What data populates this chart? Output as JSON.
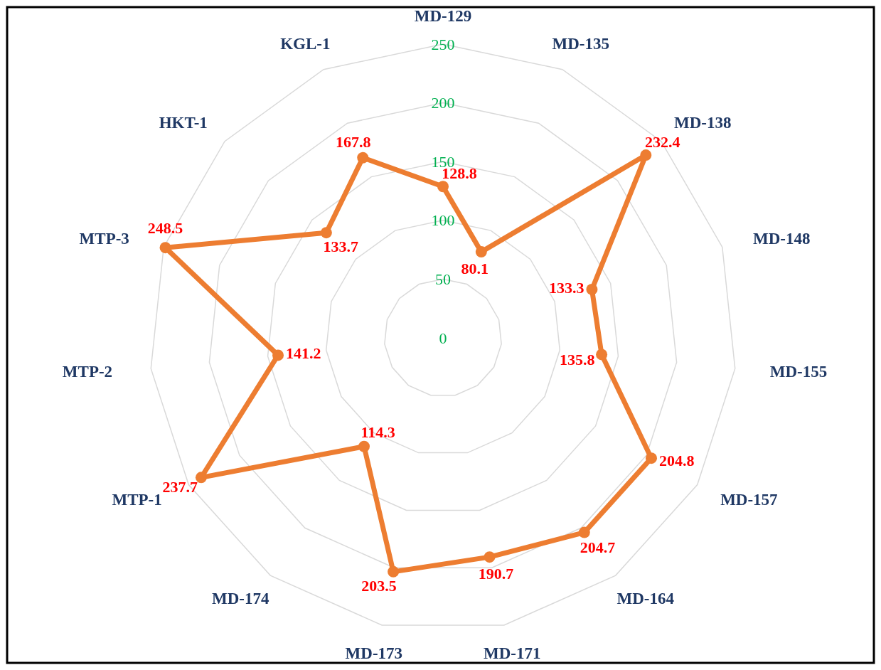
{
  "chart_data": {
    "type": "radar",
    "categories": [
      "MD-129",
      "MD-135",
      "MD-138",
      "MD-148",
      "MD-155",
      "MD-157",
      "MD-164",
      "MD-171",
      "MD-173",
      "MD-174",
      "MTP-1",
      "MTP-2",
      "MTP-3",
      "HKT-1",
      "KGL-1"
    ],
    "series": [
      {
        "color": "#ed7d31",
        "values": [
          128.8,
          80.1,
          232.4,
          133.3,
          135.8,
          204.8,
          204.7,
          190.7,
          203.5,
          114.3,
          237.7,
          141.2,
          248.5,
          133.7,
          167.8
        ]
      }
    ],
    "ylim": [
      0,
      250
    ],
    "yticks": [
      0,
      50,
      100,
      150,
      200,
      250
    ],
    "grid": true,
    "marker": "circle",
    "line_style": "solid",
    "data_labels": true
  }
}
